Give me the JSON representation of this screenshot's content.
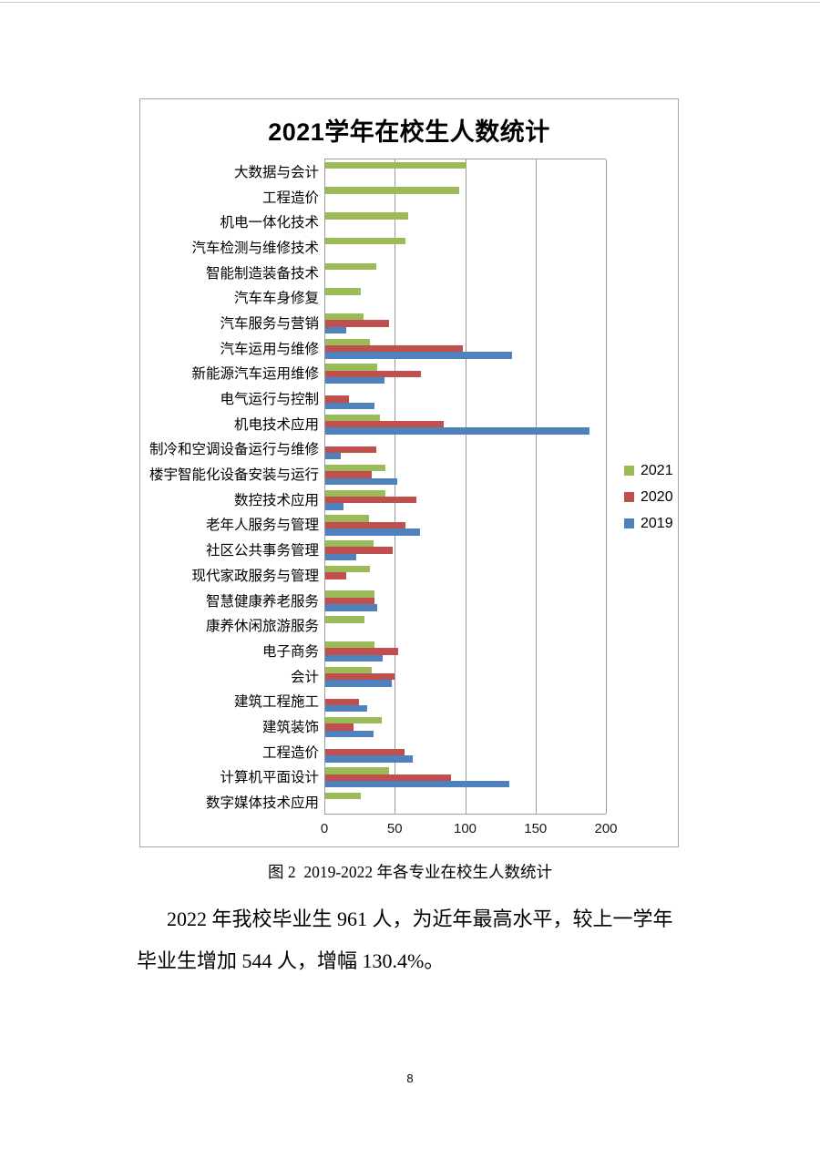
{
  "chart": {
    "title": "2021学年在校生人数统计",
    "legend_labels": [
      "2021",
      "2020",
      "2019"
    ]
  },
  "chart_data": {
    "type": "bar",
    "orientation": "horizontal",
    "title": "2021学年在校生人数统计",
    "categories": [
      "大数据与会计",
      "工程造价",
      "机电一体化技术",
      "汽车检测与维修技术",
      "智能制造装备技术",
      "汽车车身修复",
      "汽车服务与营销",
      "汽车运用与维修",
      "新能源汽车运用维修",
      "电气运行与控制",
      "机电技术应用",
      "制冷和空调设备运行与维修",
      "楼宇智能化设备安装与运行",
      "数控技术应用",
      "老年人服务与管理",
      "社区公共事务管理",
      "现代家政服务与管理",
      "智慧健康养老服务",
      "康养休闲旅游服务",
      "电子商务",
      "会计",
      "建筑工程施工",
      "建筑装饰",
      "工程造价",
      "计算机平面设计",
      "数字媒体技术应用"
    ],
    "series": [
      {
        "name": "2021",
        "color": "#9BBB59",
        "values": [
          100,
          95,
          59,
          57,
          36,
          25,
          27,
          32,
          37,
          0,
          39,
          0,
          43,
          43,
          31,
          34,
          32,
          35,
          28,
          35,
          33,
          0,
          40,
          0,
          45,
          25
        ]
      },
      {
        "name": "2020",
        "color": "#C0504D",
        "values": [
          0,
          0,
          0,
          0,
          0,
          0,
          45,
          98,
          68,
          17,
          84,
          36,
          33,
          65,
          57,
          48,
          15,
          35,
          0,
          52,
          49,
          24,
          20,
          56,
          89,
          0
        ]
      },
      {
        "name": "2019",
        "color": "#4F81BD",
        "values": [
          0,
          0,
          0,
          0,
          0,
          0,
          15,
          133,
          42,
          35,
          188,
          11,
          51,
          13,
          67,
          22,
          0,
          37,
          0,
          41,
          47,
          30,
          34,
          62,
          131,
          0
        ]
      }
    ],
    "xlim": [
      0,
      200
    ],
    "x_ticks": [
      0,
      50,
      100,
      150,
      200
    ],
    "grid": true,
    "legend_position": "right"
  },
  "caption": "图 2  2019-2022 年各专业在校生人数统计",
  "paragraph": {
    "line1": "2022 年我校毕业生 961 人，为近年最高水平，较上一学年",
    "line2": "毕业生增加 544 人，增幅 130.4%。"
  },
  "page": {
    "number": "8"
  }
}
